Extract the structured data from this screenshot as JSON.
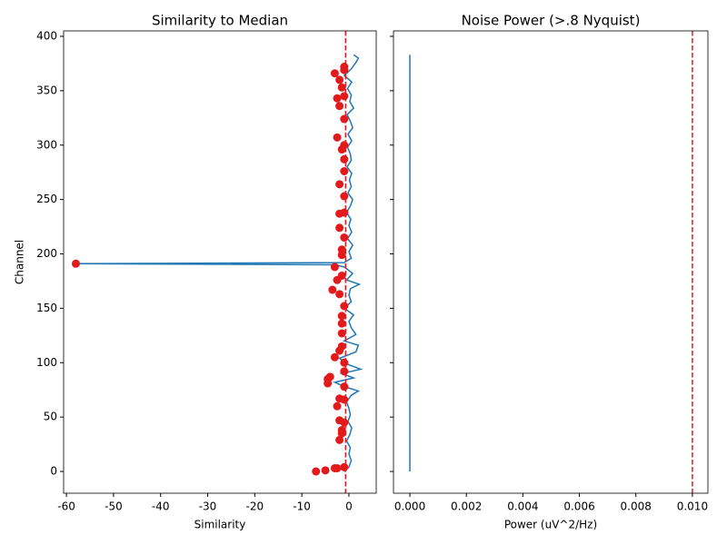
{
  "chart_data": [
    {
      "type": "line",
      "title": "Similarity to Median",
      "x_label": "Similarity",
      "y_label": "Channel",
      "xlim": [
        -60.6,
        5.8
      ],
      "ylim": [
        -20,
        405
      ],
      "xticks": [
        -60,
        -50,
        -40,
        -30,
        -20,
        -10,
        0
      ],
      "yticks": [
        0,
        50,
        100,
        150,
        200,
        250,
        300,
        350,
        400
      ],
      "show_ytick_labels": true,
      "series": [
        {
          "color": "#1f77b4",
          "y": [
            0,
            4,
            10,
            16,
            22,
            28,
            34,
            40,
            46,
            52,
            58,
            64,
            70,
            74,
            78,
            82,
            86,
            90,
            94,
            98,
            104,
            110,
            116,
            120,
            126,
            132,
            138,
            144,
            150,
            156,
            162,
            168,
            172,
            176,
            182,
            188,
            190,
            191,
            192,
            196,
            202,
            208,
            214,
            220,
            226,
            232,
            238,
            244,
            250,
            256,
            262,
            268,
            274,
            280,
            286,
            292,
            298,
            304,
            310,
            316,
            322,
            328,
            334,
            340,
            346,
            352,
            358,
            364,
            370,
            376,
            380,
            383
          ],
          "x": [
            -1,
            0,
            0.5,
            0,
            0.3,
            -0.5,
            0.2,
            0.6,
            -0.2,
            0.3,
            0,
            -0.5,
            0.5,
            2,
            -1,
            -3,
            1,
            -1.5,
            2.5,
            0,
            -2,
            1.5,
            2,
            -1,
            1.5,
            0.5,
            0,
            1,
            -1,
            0.5,
            0,
            0.3,
            2.2,
            -0.5,
            0.8,
            -1,
            -3,
            -58,
            -1,
            0.5,
            0,
            0.8,
            -0.3,
            0.6,
            0,
            0.4,
            -0.5,
            0.3,
            0.8,
            -0.2,
            0.5,
            0.1,
            0.6,
            -0.4,
            0.5,
            0.3,
            -0.3,
            0.6,
            -0.2,
            0.8,
            0.3,
            -0.4,
            1,
            0.2,
            0.5,
            -0.3,
            0.6,
            -1,
            0.5,
            1.5,
            2,
            1
          ]
        }
      ],
      "points": {
        "color": "#e31a1c",
        "x": [
          -7,
          -5,
          -3,
          -2.5,
          -1,
          -2,
          -1.5,
          -1.5,
          -2,
          -1,
          -2.5,
          -1,
          -2,
          -4.5,
          -4.5,
          -4,
          -1,
          -1,
          -3,
          -2,
          -1.5,
          -1,
          -1.5,
          -1.5,
          -1.5,
          -1,
          -2,
          -3.5,
          -2.5,
          -1.5,
          -3,
          -58,
          -1.5,
          -1.5,
          -2,
          -1,
          -2,
          -1,
          -1,
          -2,
          -1,
          -1,
          -1.5,
          -1,
          -2.5,
          -1,
          -2,
          -2.5,
          -1,
          -1.5,
          -2,
          -3,
          -1,
          -1
        ],
        "y": [
          0,
          1,
          3,
          3,
          4,
          29,
          35,
          38,
          47,
          45,
          60,
          66,
          67,
          81,
          85,
          87,
          78,
          92,
          105,
          111,
          115,
          100,
          127,
          136,
          143,
          152,
          163,
          167,
          176,
          180,
          188,
          191,
          199,
          204,
          224,
          215,
          237,
          238,
          253,
          264,
          276,
          287,
          296,
          300,
          307,
          324,
          336,
          343,
          345,
          353,
          360,
          366,
          369,
          372
        ]
      },
      "vline": {
        "value": -0.7,
        "color": "#e31a1c"
      }
    },
    {
      "type": "line",
      "title": "Noise Power (>.8 Nyquist)",
      "x_label": "Power (uV^2/Hz)",
      "xlim": [
        -0.00058,
        0.01055
      ],
      "ylim": [
        -20,
        405
      ],
      "xticks": [
        {
          "value": 0,
          "label": "0.000"
        },
        {
          "value": 0.002,
          "label": "0.002"
        },
        {
          "value": 0.004,
          "label": "0.004"
        },
        {
          "value": 0.006,
          "label": "0.006"
        },
        {
          "value": 0.008,
          "label": "0.008"
        },
        {
          "value": 0.01,
          "label": "0.010"
        }
      ],
      "yticks": [
        0,
        50,
        100,
        150,
        200,
        250,
        300,
        350,
        400
      ],
      "show_ytick_labels": false,
      "series": [
        {
          "color": "#1f77b4",
          "x": [
            0,
            0
          ],
          "y": [
            0,
            383
          ]
        }
      ],
      "vline": {
        "value": 0.01,
        "color": "#e31a1c"
      }
    }
  ]
}
